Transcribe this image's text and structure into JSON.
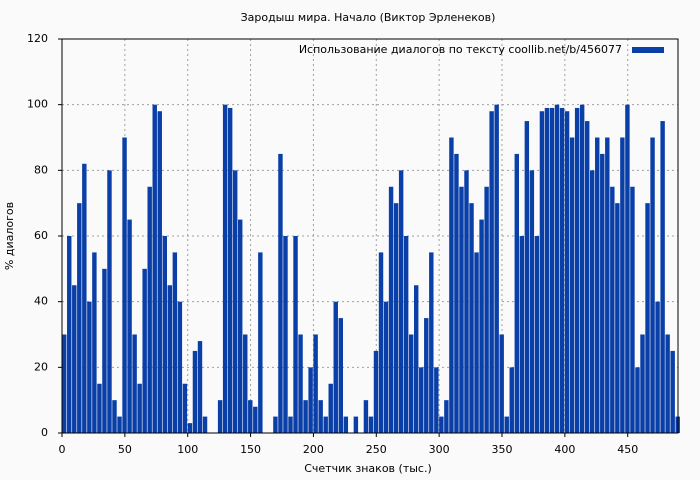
{
  "chart_data": {
    "type": "bar",
    "title": "Зародыш мира. Начало (Виктор Эрленеков)",
    "xlabel": "Счетчик знаков (тыс.)",
    "ylabel": "% диалогов",
    "x": [
      0,
      4,
      8,
      12,
      16,
      20,
      24,
      28,
      32,
      36,
      40,
      44,
      48,
      52,
      56,
      60,
      64,
      68,
      72,
      76,
      80,
      84,
      88,
      92,
      96,
      100,
      104,
      108,
      112,
      116,
      120,
      124,
      128,
      132,
      136,
      140,
      144,
      148,
      152,
      156,
      160,
      164,
      168,
      172,
      176,
      180,
      184,
      188,
      192,
      196,
      200,
      204,
      208,
      212,
      216,
      220,
      224,
      228,
      232,
      236,
      240,
      244,
      248,
      252,
      256,
      260,
      264,
      268,
      272,
      276,
      280,
      284,
      288,
      292,
      296,
      300,
      304,
      308,
      312,
      316,
      320,
      324,
      328,
      332,
      336,
      340,
      344,
      348,
      352,
      356,
      360,
      364,
      368,
      372,
      376,
      380,
      384,
      388,
      392,
      396,
      400,
      404,
      408,
      412,
      416,
      420,
      424,
      428,
      432,
      436,
      440,
      444,
      448,
      452,
      456,
      460,
      464,
      468,
      472,
      476,
      480,
      484,
      488
    ],
    "series": [
      {
        "name": "Использование диалогов по тексту  coollib.net/b/456077",
        "color": "#0b3fa8",
        "values": [
          30,
          60,
          45,
          70,
          82,
          40,
          55,
          15,
          50,
          80,
          10,
          5,
          90,
          65,
          30,
          15,
          50,
          75,
          100,
          98,
          60,
          45,
          55,
          40,
          15,
          3,
          25,
          28,
          5,
          0,
          0,
          10,
          100,
          99,
          80,
          65,
          30,
          10,
          8,
          55,
          0,
          0,
          5,
          85,
          60,
          5,
          60,
          30,
          10,
          20,
          30,
          10,
          5,
          15,
          40,
          35,
          5,
          0,
          5,
          0,
          10,
          5,
          25,
          55,
          40,
          75,
          70,
          80,
          60,
          30,
          45,
          20,
          35,
          55,
          20,
          5,
          10,
          90,
          85,
          75,
          80,
          70,
          55,
          65,
          75,
          98,
          100,
          30,
          5,
          20,
          85,
          60,
          95,
          80,
          60,
          98,
          99,
          99,
          100,
          99,
          98,
          90,
          99,
          100,
          95,
          80,
          90,
          85,
          90,
          75,
          70,
          90,
          100,
          75,
          20,
          30,
          70,
          90,
          40,
          95,
          30,
          25,
          5
        ]
      }
    ],
    "bar_width": 4,
    "xlim": [
      0,
      490
    ],
    "xticks": [
      0,
      50,
      100,
      150,
      200,
      250,
      300,
      350,
      400,
      450
    ],
    "ylim": [
      0,
      120
    ],
    "yticks": [
      0,
      20,
      40,
      60,
      80,
      100,
      120
    ],
    "grid": true,
    "legend": "top-right"
  }
}
